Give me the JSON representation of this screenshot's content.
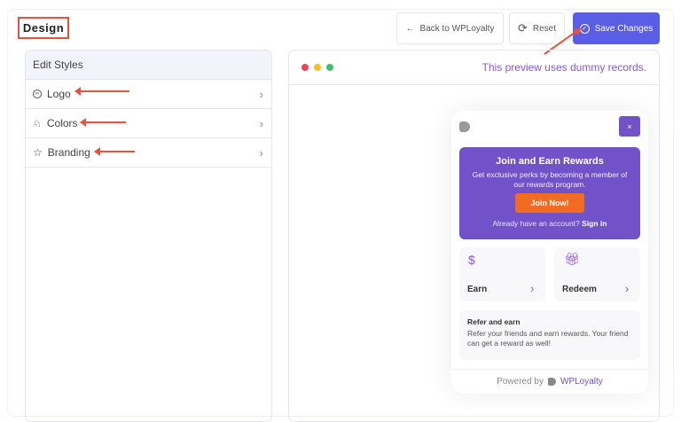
{
  "header": {
    "title": "Design",
    "back_label": "Back to WPLoyalty",
    "reset_label": "Reset",
    "save_label": "Save Changes"
  },
  "sidebar": {
    "title": "Edit Styles",
    "items": [
      {
        "label": "Logo",
        "icon": "logo-icon"
      },
      {
        "label": "Colors",
        "icon": "palette-icon"
      },
      {
        "label": "Branding",
        "icon": "star-icon"
      }
    ]
  },
  "preview": {
    "note": "This preview uses dummy records.",
    "widget": {
      "close": "×",
      "hero_title": "Join and Earn Rewards",
      "hero_text": "Get exclusive perks by becoming a member of our rewards program.",
      "join_label": "Join Now!",
      "account_text": "Already have an account?",
      "signin_label": "Sign in",
      "earn_label": "Earn",
      "redeem_label": "Redeem",
      "refer_title": "Refer and earn",
      "refer_text": "Refer your friends and earn rewards. Your friend can get a reward as well!",
      "powered_by": "Powered by",
      "brand": "WPLoyalty"
    }
  },
  "colors": {
    "accent": "#5a5ee6",
    "widget_purple": "#7152c8",
    "join_orange": "#f26b22",
    "annotation_red": "#e5533c"
  }
}
